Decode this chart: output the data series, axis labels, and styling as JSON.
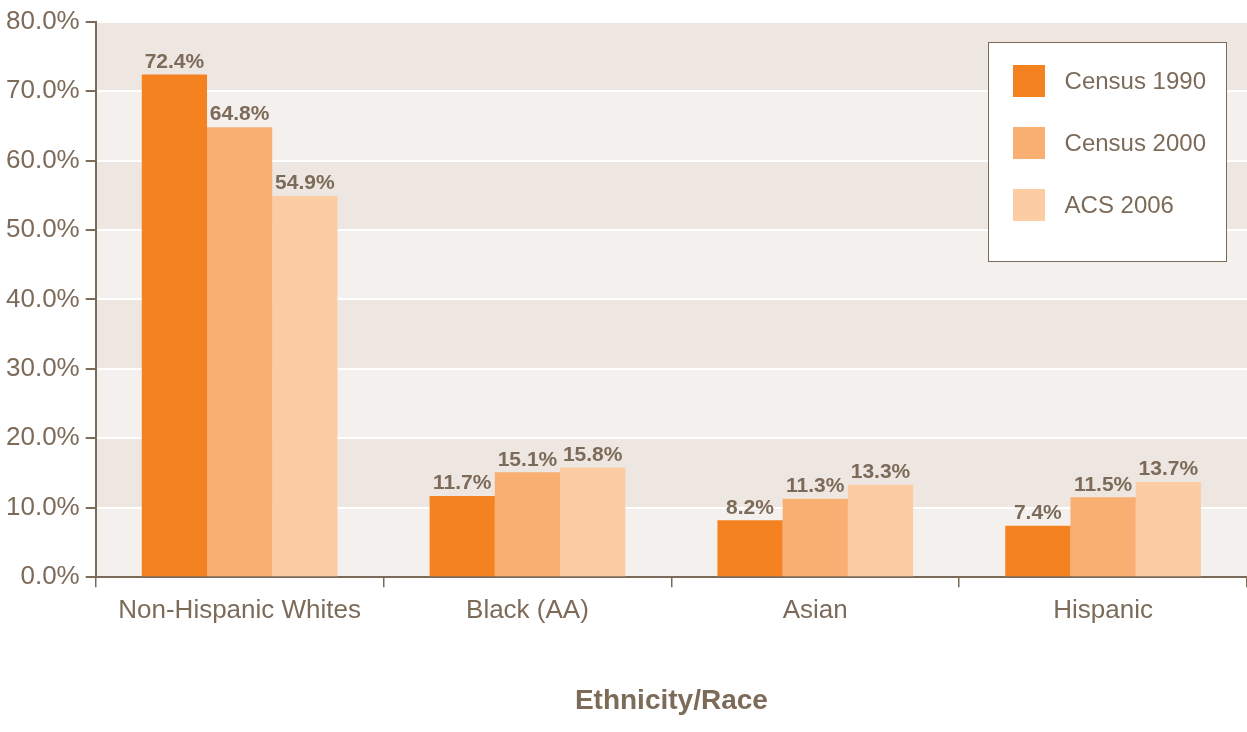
{
  "chart_data": {
    "type": "bar",
    "xlabel": "Ethnicity/Race",
    "categories": [
      "Non-Hispanic Whites",
      "Black (AA)",
      "Asian",
      "Hispanic"
    ],
    "series": [
      {
        "name": "Census 1990",
        "color": "#f58220",
        "values": [
          72.4,
          11.7,
          8.2,
          7.4
        ],
        "value_labels": [
          "72.4%",
          "11.7%",
          "8.2%",
          "7.4%"
        ]
      },
      {
        "name": "Census 2000",
        "color": "#f9ae72",
        "values": [
          64.8,
          15.1,
          11.3,
          11.5
        ],
        "value_labels": [
          "64.8%",
          "15.1%",
          "11.3%",
          "11.5%"
        ]
      },
      {
        "name": "ACS 2006",
        "color": "#fccda3",
        "values": [
          54.9,
          15.8,
          13.3,
          13.7
        ],
        "value_labels": [
          "54.9%",
          "15.8%",
          "13.3%",
          "13.7%"
        ]
      }
    ],
    "ylim": [
      0,
      80
    ],
    "yticks": [
      {
        "value": 0,
        "label": "0.0%"
      },
      {
        "value": 10,
        "label": "10.0%"
      },
      {
        "value": 20,
        "label": "20.0%"
      },
      {
        "value": 30,
        "label": "30.0%"
      },
      {
        "value": 40,
        "label": "40.0%"
      },
      {
        "value": 50,
        "label": "50.0%"
      },
      {
        "value": 60,
        "label": "60.0%"
      },
      {
        "value": 70,
        "label": "70.0%"
      },
      {
        "value": 80,
        "label": "80.0%"
      }
    ],
    "grid": "y",
    "legend": "top right"
  }
}
